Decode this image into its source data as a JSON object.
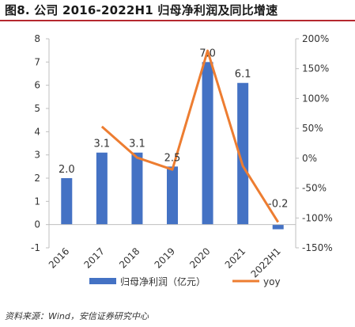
{
  "header": {
    "title": "图8. 公司 2016-2022H1 归母净利润及同比增速"
  },
  "footer": {
    "source": "资料来源：Wind，安信证券研究中心"
  },
  "colors": {
    "bar": "#4472c4",
    "line": "#ed7d31",
    "title_rule": "#b5282e",
    "axis": "#bfbfbf"
  },
  "chart_data": {
    "type": "bar",
    "categories": [
      "2016",
      "2017",
      "2018",
      "2019",
      "2020",
      "2021",
      "2022H1"
    ],
    "series": [
      {
        "name": "归母净利润（亿元）",
        "type": "bar",
        "axis": "left",
        "values": [
          2.0,
          3.1,
          3.1,
          2.5,
          7.0,
          6.1,
          -0.2
        ],
        "labels": [
          "2.0",
          "3.1",
          "3.1",
          "2.5",
          "7.0",
          "6.1",
          "-0.2"
        ]
      },
      {
        "name": "yoy",
        "type": "line",
        "axis": "right",
        "values": [
          null,
          53,
          1,
          -19,
          180,
          -13,
          -107
        ]
      }
    ],
    "y_left": {
      "min": -1,
      "max": 8,
      "step": 1,
      "ticks": [
        "-1",
        "0",
        "1",
        "2",
        "3",
        "4",
        "5",
        "6",
        "7",
        "8"
      ]
    },
    "y_right": {
      "min": -150,
      "max": 200,
      "step": 50,
      "ticks": [
        "-150%",
        "-100%",
        "-50%",
        "0%",
        "50%",
        "100%",
        "150%",
        "200%"
      ]
    },
    "grid": false,
    "legend": "bottom"
  }
}
